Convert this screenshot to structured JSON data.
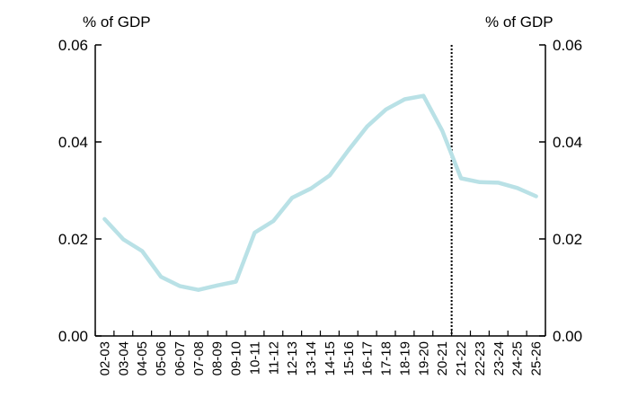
{
  "chart_data": {
    "type": "line",
    "left_axis_unit": "% of GDP",
    "right_axis_unit": "% of GDP",
    "categories": [
      "02-03",
      "03-04",
      "04-05",
      "05-06",
      "06-07",
      "07-08",
      "08-09",
      "09-10",
      "10-11",
      "11-12",
      "12-13",
      "13-14",
      "14-15",
      "15-16",
      "16-17",
      "17-18",
      "18-19",
      "19-20",
      "20-21",
      "21-22",
      "22-23",
      "23-24",
      "24-25",
      "25-26"
    ],
    "series": [
      {
        "values": [
          0.0241,
          0.0199,
          0.0175,
          0.0122,
          0.0103,
          0.0095,
          0.0104,
          0.0112,
          0.0213,
          0.0237,
          0.0285,
          0.0304,
          0.0331,
          0.0383,
          0.0432,
          0.0467,
          0.0488,
          0.0495,
          0.0423,
          0.0325,
          0.0317,
          0.0316,
          0.0305,
          0.0288
        ],
        "color": "#b9e1e6"
      }
    ],
    "ylim": [
      0,
      0.06
    ],
    "yticks": [
      "0.00",
      "0.02",
      "0.04",
      "0.06"
    ],
    "forecast_divider_after": "20-21",
    "grid": false,
    "legend": "none"
  }
}
